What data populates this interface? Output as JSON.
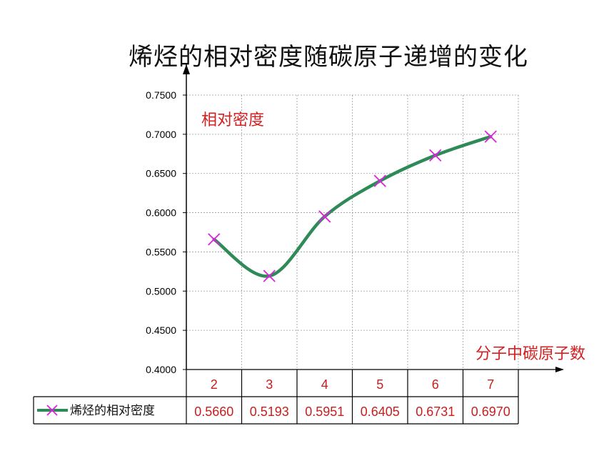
{
  "chart_data": {
    "type": "line",
    "title": "烯烃的相对密度随碳原子递增的变化",
    "ylabel": "相对密度",
    "xlabel": "分子中碳原子数",
    "categories": [
      "2",
      "3",
      "4",
      "5",
      "6",
      "7"
    ],
    "y_ticks": [
      "0.4000",
      "0.4500",
      "0.5000",
      "0.5500",
      "0.6000",
      "0.6500",
      "0.7000",
      "0.7500"
    ],
    "ylim": [
      0.4,
      0.75
    ],
    "grid": true,
    "series": [
      {
        "name": "烯烃的相对密度",
        "values": [
          0.566,
          0.5193,
          0.5951,
          0.6405,
          0.6731,
          0.697
        ],
        "value_labels": [
          "0.5660",
          "0.5193",
          "0.5951",
          "0.6405",
          "0.6731",
          "0.6970"
        ],
        "line_color": "#2e8b57",
        "marker_color": "#e020e0",
        "marker": "x"
      }
    ],
    "legend": "bottom-table"
  }
}
